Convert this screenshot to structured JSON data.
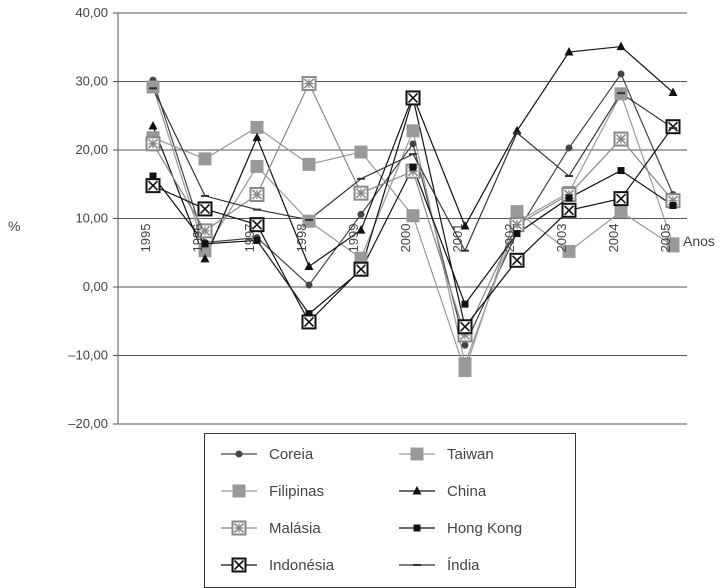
{
  "chart_data": {
    "type": "line",
    "title": "",
    "xlabel": "Anos",
    "ylabel": "%",
    "categories": [
      "1995",
      "1996",
      "1997",
      "1998",
      "1999",
      "2000",
      "2001",
      "2002",
      "2003",
      "2004",
      "2005"
    ],
    "ylim": [
      -20,
      40
    ],
    "yticks": [
      -20,
      -10,
      0,
      10,
      20,
      30,
      40
    ],
    "ytick_labels": [
      "–20,00",
      "–10,00",
      "0,00",
      "10,00",
      "20,00",
      "30,00",
      "40,00"
    ],
    "grid": "horizontal",
    "legend_position": "bottom",
    "series": [
      {
        "name": "Coreia",
        "color": "#444444",
        "marker": "circle",
        "marker_size": "small",
        "values": [
          30.2,
          6.5,
          7.2,
          0.3,
          10.6,
          20.9,
          -8.5,
          8.0,
          20.3,
          31.1,
          13.5
        ]
      },
      {
        "name": "Taiwan",
        "color": "#999999",
        "marker": "square",
        "marker_size": "large",
        "values": [
          21.8,
          18.7,
          23.3,
          17.9,
          19.7,
          10.4,
          -12.2,
          11.0,
          5.2,
          11.0,
          6.0
        ]
      },
      {
        "name": "Filipinas",
        "color": "#999999",
        "marker": "square",
        "marker_size": "large",
        "values": [
          29.2,
          5.3,
          17.6,
          9.6,
          4.2,
          22.8,
          -11.2,
          9.5,
          13.8,
          28.2,
          6.3
        ]
      },
      {
        "name": "China",
        "color": "#111111",
        "marker": "triangle",
        "marker_size": "small",
        "values": [
          23.5,
          4.1,
          21.8,
          3.0,
          8.3,
          27.9,
          8.9,
          22.8,
          34.3,
          35.1,
          28.4
        ]
      },
      {
        "name": "Malásia",
        "color": "#888888",
        "marker": "square-asterisk",
        "marker_size": "large",
        "values": [
          20.9,
          8.2,
          13.5,
          29.7,
          13.7,
          16.9,
          -7.0,
          9.1,
          13.5,
          21.6,
          12.6
        ]
      },
      {
        "name": "Hong Kong",
        "color": "#111111",
        "marker": "square",
        "marker_size": "small",
        "values": [
          16.2,
          6.3,
          6.8,
          -3.9,
          2.4,
          17.5,
          -2.5,
          7.8,
          13.0,
          17.0,
          11.9
        ]
      },
      {
        "name": "Indonésia",
        "color": "#111111",
        "marker": "square-x",
        "marker_size": "large",
        "values": [
          14.8,
          11.4,
          9.1,
          -5.1,
          2.6,
          27.6,
          -5.8,
          3.9,
          11.2,
          12.9,
          23.4
        ]
      },
      {
        "name": "Índia",
        "color": "#333333",
        "marker": "dash",
        "marker_size": "small",
        "values": [
          29.0,
          13.3,
          11.3,
          9.8,
          15.8,
          19.4,
          5.3,
          22.5,
          16.2,
          28.3,
          23.2
        ]
      }
    ]
  }
}
